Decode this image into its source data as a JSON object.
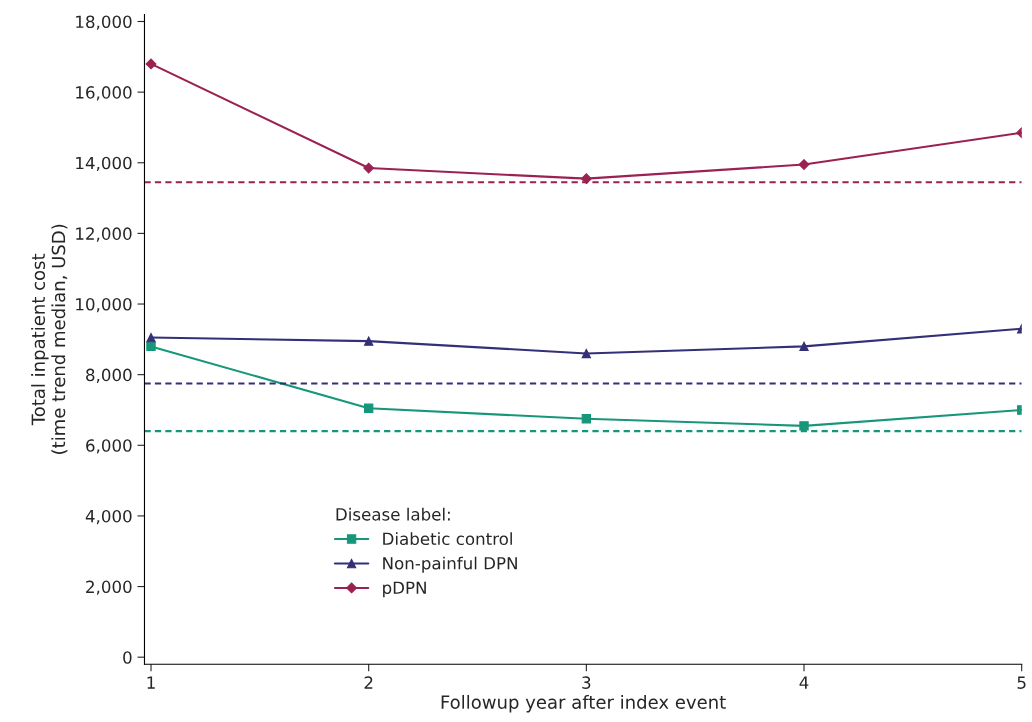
{
  "chart_data": {
    "type": "line",
    "xlabel": "Followup year after index event",
    "ylabel": "Total inpatient cost\n(time trend median, USD)",
    "legend_title": "Disease label:",
    "x": [
      1,
      2,
      3,
      4,
      5
    ],
    "xlim": [
      0.97,
      5
    ],
    "xticks": [
      1,
      2,
      3,
      4,
      5
    ],
    "ylim": [
      -200,
      18200
    ],
    "yticks": [
      {
        "value": 0,
        "label": "0"
      },
      {
        "value": 2000,
        "label": "2,000"
      },
      {
        "value": 4000,
        "label": "4,000"
      },
      {
        "value": 6000,
        "label": "6,000"
      },
      {
        "value": 8000,
        "label": "8,000"
      },
      {
        "value": 10000,
        "label": "10,000"
      },
      {
        "value": 12000,
        "label": "12,000"
      },
      {
        "value": 14000,
        "label": "14,000"
      },
      {
        "value": 16000,
        "label": "16,000"
      },
      {
        "value": 18000,
        "label": "18,000"
      }
    ],
    "series": [
      {
        "name": "Diabetic control",
        "color": "#17977a",
        "marker": "square",
        "values": [
          8800,
          7050,
          6750,
          6550,
          7000
        ]
      },
      {
        "name": "Non-painful DPN",
        "color": "#332f78",
        "marker": "triangle",
        "values": [
          9050,
          8950,
          8600,
          8800,
          9300
        ]
      },
      {
        "name": "pDPN",
        "color": "#9b2152",
        "marker": "diamond",
        "values": [
          16800,
          13850,
          13550,
          13950,
          14850
        ]
      }
    ],
    "ref_lines": [
      {
        "axis": "y",
        "value": 6400,
        "color": "#17977a",
        "line_style": "dashed"
      },
      {
        "axis": "y",
        "value": 7750,
        "color": "#332f78",
        "line_style": "dashed"
      },
      {
        "axis": "y",
        "value": 13450,
        "color": "#9b2152",
        "line_style": "dashed"
      }
    ],
    "grid": false,
    "legend": "bottom left",
    "line_style": "solid"
  }
}
